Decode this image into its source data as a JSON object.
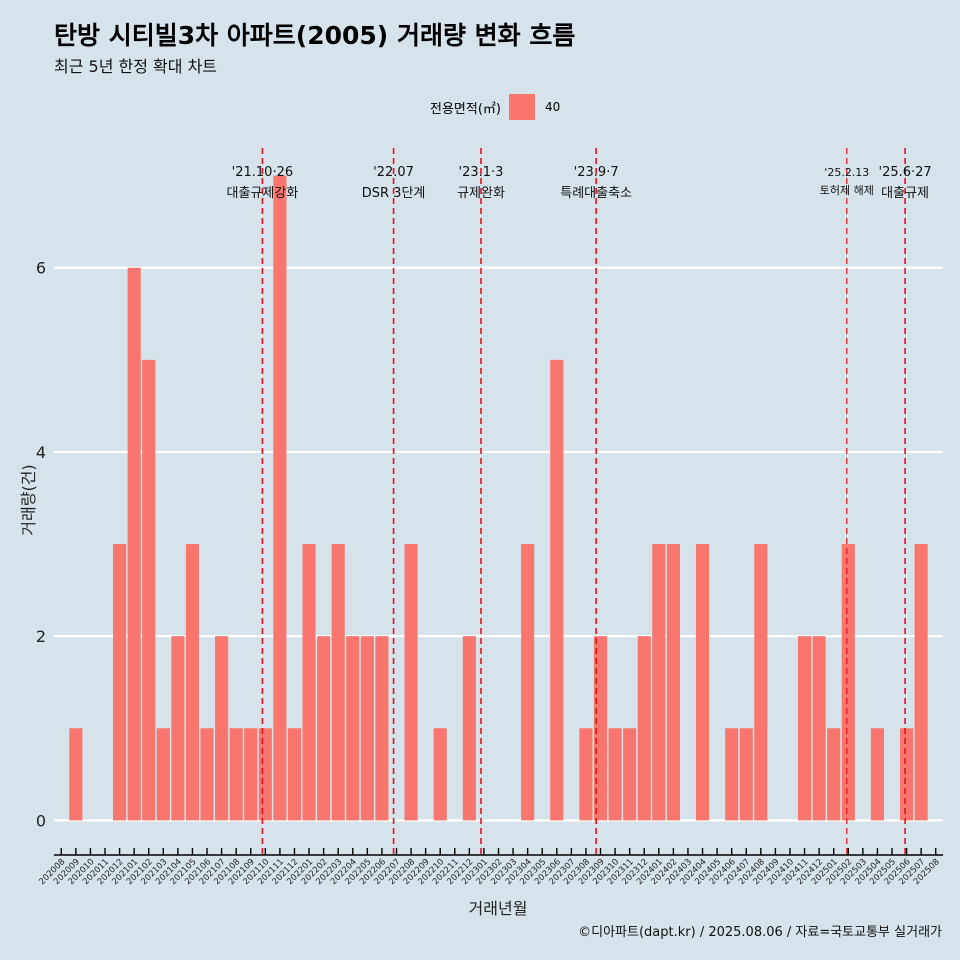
{
  "title": "탄방 시티빌3차 아파트(2005) 거래량 변화 흐름",
  "subtitle": "최근 5년 한정 확대 차트",
  "legend": {
    "title": "전용면적(㎡)",
    "label": "40",
    "color": "#f8766d"
  },
  "caption": "©디아파트(dapt.kr) / 2025.08.06 / 자료=국토교통부 실거래가",
  "chart_data": {
    "type": "bar",
    "xlabel": "거래년월",
    "ylabel": "거래량(건)",
    "ylim": [
      -0.3,
      7.3
    ],
    "yticks": [
      0,
      2,
      4,
      6
    ],
    "bar_color": "#f8766d",
    "categories": [
      "202008",
      "202009",
      "202010",
      "202011",
      "202012",
      "202101",
      "202102",
      "202103",
      "202104",
      "202105",
      "202106",
      "202107",
      "202108",
      "202109",
      "202110",
      "202111",
      "202112",
      "202201",
      "202202",
      "202203",
      "202204",
      "202205",
      "202206",
      "202207",
      "202208",
      "202209",
      "202210",
      "202211",
      "202212",
      "202301",
      "202302",
      "202303",
      "202304",
      "202305",
      "202306",
      "202307",
      "202308",
      "202309",
      "202310",
      "202311",
      "202312",
      "202401",
      "202402",
      "202403",
      "202404",
      "202405",
      "202406",
      "202407",
      "202408",
      "202409",
      "202410",
      "202411",
      "202412",
      "202501",
      "202502",
      "202503",
      "202504",
      "202505",
      "202506",
      "202507",
      "202508"
    ],
    "values": [
      0,
      1,
      0,
      0,
      3,
      6,
      5,
      1,
      2,
      3,
      1,
      2,
      1,
      1,
      1,
      7,
      1,
      3,
      2,
      3,
      2,
      2,
      2,
      0,
      3,
      0,
      1,
      0,
      2,
      0,
      0,
      0,
      3,
      0,
      5,
      0,
      1,
      2,
      1,
      1,
      2,
      3,
      3,
      0,
      3,
      0,
      1,
      1,
      3,
      0,
      0,
      2,
      2,
      1,
      3,
      0,
      1,
      0,
      1,
      3,
      0
    ],
    "annotations": [
      {
        "date": "'21.10·26",
        "label": "대출규제강화",
        "position": 14.3,
        "small": false
      },
      {
        "date": "'22.07",
        "label": "DSR 3단계",
        "position": 23.3,
        "small": false
      },
      {
        "date": "'23.1·3",
        "label": "규제완화",
        "position": 29.3,
        "small": false
      },
      {
        "date": "'23.9·7",
        "label": "특례대출축소",
        "position": 37.2,
        "small": false
      },
      {
        "date": "'25.2.13",
        "label": "토허제 해제",
        "position": 54.4,
        "small": true
      },
      {
        "date": "'25.6·27",
        "label": "대출규제",
        "position": 58.4,
        "small": false
      }
    ]
  }
}
